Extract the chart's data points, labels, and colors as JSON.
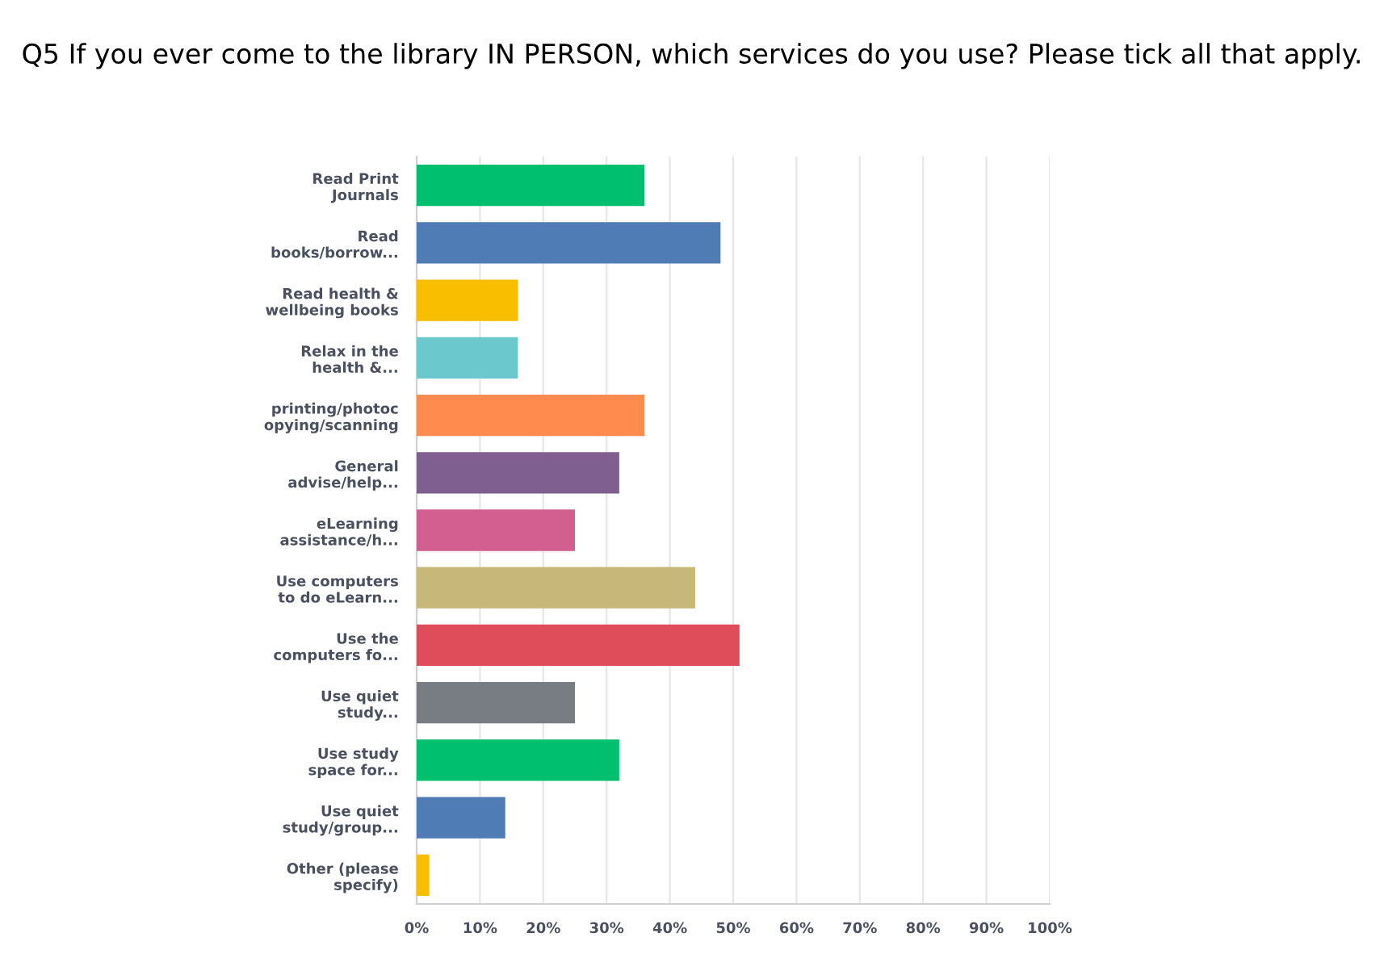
{
  "chart_data": {
    "type": "bar",
    "orientation": "horizontal",
    "title": "Q5 If you ever come to the library IN PERSON, which services do you use? Please tick all that apply.",
    "categories": [
      "Read Print\nJournals",
      "Read\nbooks/borrow...",
      "Read health &\nwellbeing books",
      "Relax in the\nhealth &...",
      "printing/photoc\nopying/scanning",
      "General\nadvise/help...",
      "eLearning\nassistance/h...",
      "Use computers\nto do eLearn...",
      "Use the\ncomputers fo...",
      "Use quiet\nstudy...",
      "Use study\nspace for...",
      "Use quiet\nstudy/group...",
      "Other (please\nspecify)"
    ],
    "values": [
      36,
      48,
      16,
      16,
      36,
      32,
      25,
      44,
      51,
      25,
      32,
      14,
      2
    ],
    "colors": [
      "#00bf6f",
      "#507cb6",
      "#f9be00",
      "#6bc8cd",
      "#ff8b4f",
      "#7f5f90",
      "#d25f90",
      "#c7b879",
      "#df4d5a",
      "#787d84",
      "#00bf6f",
      "#507cb6",
      "#f9be00"
    ],
    "xlim": [
      0,
      100
    ],
    "xticks": [
      {
        "value": 0,
        "label": "0%"
      },
      {
        "value": 10,
        "label": "10%"
      },
      {
        "value": 20,
        "label": "20%"
      },
      {
        "value": 30,
        "label": "30%"
      },
      {
        "value": 40,
        "label": "40%"
      },
      {
        "value": 50,
        "label": "50%"
      },
      {
        "value": 60,
        "label": "60%"
      },
      {
        "value": 70,
        "label": "70%"
      },
      {
        "value": 80,
        "label": "80%"
      },
      {
        "value": 90,
        "label": "90%"
      },
      {
        "value": 100,
        "label": "100%"
      }
    ],
    "grid": "x"
  }
}
